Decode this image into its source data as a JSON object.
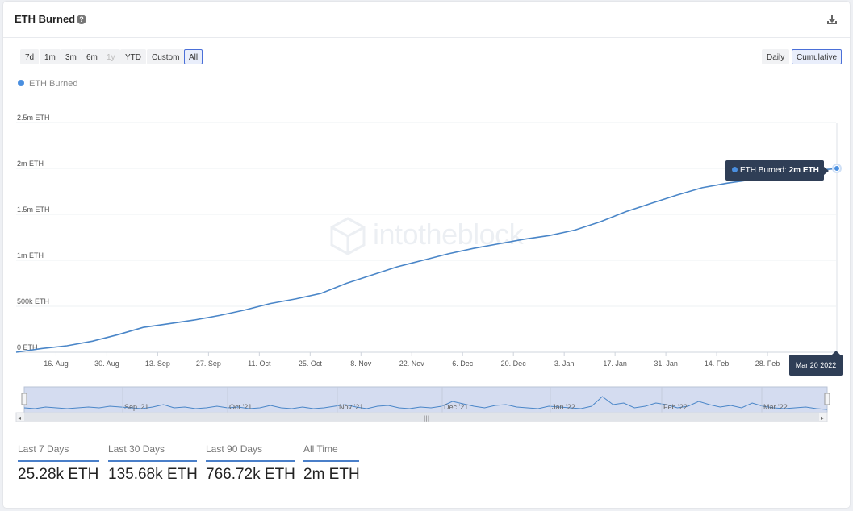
{
  "header": {
    "title": "ETH Burned",
    "help_icon": "question-circle-icon",
    "download_icon": "download-icon"
  },
  "range_buttons": [
    {
      "label": "7d",
      "state": "normal"
    },
    {
      "label": "1m",
      "state": "normal"
    },
    {
      "label": "3m",
      "state": "normal"
    },
    {
      "label": "6m",
      "state": "normal"
    },
    {
      "label": "1y",
      "state": "disabled"
    },
    {
      "label": "YTD",
      "state": "normal"
    },
    {
      "label": "Custom",
      "state": "normal"
    },
    {
      "label": "All",
      "state": "active"
    }
  ],
  "mode_buttons": [
    {
      "label": "Daily",
      "state": "normal"
    },
    {
      "label": "Cumulative",
      "state": "active"
    }
  ],
  "watermark": "intotheblock",
  "tooltip": {
    "label": "ETH Burned: ",
    "value": "2m ETH"
  },
  "date_flag": "Mar 20 2022",
  "navigator_labels": [
    "Sep '21",
    "Oct '21",
    "Nov '21",
    "Dec '21",
    "Jan '22",
    "Feb '22",
    "Mar '22"
  ],
  "stats": [
    {
      "label": "Last 7 Days",
      "value": "25.28k ETH"
    },
    {
      "label": "Last 30 Days",
      "value": "135.68k ETH"
    },
    {
      "label": "Last 90 Days",
      "value": "766.72k ETH"
    },
    {
      "label": "All Time",
      "value": "2m ETH"
    }
  ],
  "colors": {
    "line": "#4a86c8",
    "accent": "#4a6fd8",
    "dark": "#2f3e56"
  },
  "chart_data": {
    "type": "line",
    "title": "",
    "legend": [
      "ETH Burned"
    ],
    "legend_position": "top-left",
    "ylabel": "",
    "ylim": [
      0,
      2500000
    ],
    "y_ticks": [
      0,
      500000,
      1000000,
      1500000,
      2000000,
      2500000
    ],
    "y_tick_labels": [
      "0 ETH",
      "500k ETH",
      "1m ETH",
      "1.5m ETH",
      "2m ETH",
      "2.5m ETH"
    ],
    "x_range": [
      "2021-08-05",
      "2022-03-20"
    ],
    "x_ticks": [
      "2021-08-16",
      "2021-08-30",
      "2021-09-13",
      "2021-09-27",
      "2021-10-11",
      "2021-10-25",
      "2021-11-08",
      "2021-11-22",
      "2021-12-06",
      "2021-12-20",
      "2022-01-03",
      "2022-01-17",
      "2022-01-31",
      "2022-02-14",
      "2022-02-28"
    ],
    "x_tick_labels": [
      "16. Aug",
      "30. Aug",
      "13. Sep",
      "27. Sep",
      "11. Oct",
      "25. Oct",
      "8. Nov",
      "22. Nov",
      "6. Dec",
      "20. Dec",
      "3. Jan",
      "17. Jan",
      "31. Jan",
      "14. Feb",
      "28. Feb"
    ],
    "grid": true,
    "series": [
      {
        "name": "ETH Burned",
        "x": [
          "2021-08-05",
          "2021-08-12",
          "2021-08-19",
          "2021-08-26",
          "2021-09-02",
          "2021-09-09",
          "2021-09-16",
          "2021-09-23",
          "2021-09-30",
          "2021-10-07",
          "2021-10-14",
          "2021-10-21",
          "2021-10-28",
          "2021-11-04",
          "2021-11-11",
          "2021-11-18",
          "2021-11-25",
          "2021-12-02",
          "2021-12-09",
          "2021-12-16",
          "2021-12-23",
          "2021-12-30",
          "2022-01-06",
          "2022-01-13",
          "2022-01-20",
          "2022-01-27",
          "2022-02-03",
          "2022-02-10",
          "2022-02-17",
          "2022-02-24",
          "2022-03-03",
          "2022-03-10",
          "2022-03-20"
        ],
        "values": [
          0,
          40000,
          70000,
          120000,
          190000,
          270000,
          310000,
          350000,
          400000,
          460000,
          530000,
          580000,
          640000,
          750000,
          840000,
          930000,
          1000000,
          1070000,
          1130000,
          1180000,
          1230000,
          1270000,
          1330000,
          1420000,
          1530000,
          1620000,
          1710000,
          1790000,
          1840000,
          1880000,
          1930000,
          1970000,
          2000000
        ]
      }
    ]
  }
}
